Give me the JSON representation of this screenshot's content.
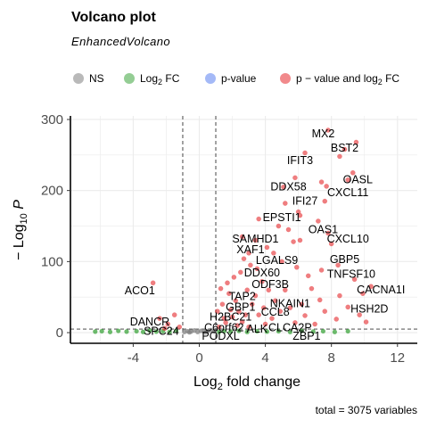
{
  "chart_data": {
    "type": "scatter",
    "title": "Volcano plot",
    "subtitle": "EnhancedVolcano",
    "xlabel": "fold change",
    "xlabel_prefix": "Log",
    "xlabel_sub": "2",
    "ylabel": "P",
    "ylabel_prefix": "− Log",
    "ylabel_sub": "10",
    "caption": "total = 3075 variables",
    "xlim": [
      -7.8,
      13.2
    ],
    "ylim": [
      -15,
      305
    ],
    "x_ticks": [
      -4,
      0,
      4,
      8,
      12
    ],
    "x_tick_labels": [
      "-4",
      "0",
      "4",
      "8",
      "12"
    ],
    "y_ticks": [
      0,
      100,
      200,
      300
    ],
    "y_tick_labels": [
      "0",
      "100",
      "200",
      "300"
    ],
    "grid": true,
    "fc_cutoff": 1,
    "p_cutoff_log10": 5,
    "legend_position": "top",
    "legend": [
      {
        "key": "ns",
        "label": "NS",
        "color": "#808080"
      },
      {
        "key": "fc",
        "label_prefix": "Log",
        "label_sub": "2",
        "label_suffix": " FC",
        "color": "#3ca43c"
      },
      {
        "key": "p",
        "label": "p-value",
        "color": "#5a7ff0"
      },
      {
        "key": "both",
        "label_prefix": "p − value and log",
        "label_sub": "2",
        "label_suffix": " FC",
        "color": "#e5282b"
      }
    ],
    "highlight_points": [
      {
        "x": 7.8,
        "y": 285
      },
      {
        "x": 9.5,
        "y": 268
      },
      {
        "x": 8.8,
        "y": 258
      },
      {
        "x": 6.4,
        "y": 253
      },
      {
        "x": 8.5,
        "y": 248
      },
      {
        "x": 9.3,
        "y": 225
      },
      {
        "x": 9.0,
        "y": 215
      },
      {
        "x": 5.8,
        "y": 218
      },
      {
        "x": 7.4,
        "y": 212
      },
      {
        "x": 7.7,
        "y": 206
      },
      {
        "x": 5.1,
        "y": 205
      },
      {
        "x": 7.6,
        "y": 185
      },
      {
        "x": 5.2,
        "y": 182
      },
      {
        "x": 6.0,
        "y": 170
      },
      {
        "x": 3.6,
        "y": 160
      },
      {
        "x": 6.1,
        "y": 165
      },
      {
        "x": 7.2,
        "y": 157
      },
      {
        "x": 4.8,
        "y": 150
      },
      {
        "x": 5.4,
        "y": 145
      },
      {
        "x": 7.8,
        "y": 140
      },
      {
        "x": 2.6,
        "y": 135
      },
      {
        "x": 3.4,
        "y": 130
      },
      {
        "x": 5.7,
        "y": 128
      },
      {
        "x": 6.1,
        "y": 130
      },
      {
        "x": 8.0,
        "y": 125
      },
      {
        "x": 4.1,
        "y": 120
      },
      {
        "x": 4.5,
        "y": 112
      },
      {
        "x": 3.0,
        "y": 112
      },
      {
        "x": 2.7,
        "y": 104
      },
      {
        "x": 5.0,
        "y": 100
      },
      {
        "x": 8.4,
        "y": 95
      },
      {
        "x": 7.4,
        "y": 88
      },
      {
        "x": 3.5,
        "y": 90
      },
      {
        "x": 9.4,
        "y": 75
      },
      {
        "x": 10.4,
        "y": 65
      },
      {
        "x": 9.9,
        "y": 55
      },
      {
        "x": 8.5,
        "y": 52
      },
      {
        "x": 7.3,
        "y": 46
      },
      {
        "x": 6.2,
        "y": 40
      },
      {
        "x": 5.5,
        "y": 35
      },
      {
        "x": 9.0,
        "y": 36
      },
      {
        "x": 7.6,
        "y": 30
      },
      {
        "x": 6.4,
        "y": 24
      },
      {
        "x": 8.3,
        "y": 19
      },
      {
        "x": 9.7,
        "y": 25
      },
      {
        "x": 5.8,
        "y": 14
      },
      {
        "x": 7.0,
        "y": 12
      },
      {
        "x": 10.1,
        "y": 15
      },
      {
        "x": 4.9,
        "y": 30
      },
      {
        "x": 4.2,
        "y": 60
      },
      {
        "x": 4.6,
        "y": 45
      },
      {
        "x": 3.8,
        "y": 72
      },
      {
        "x": -2.8,
        "y": 70
      },
      {
        "x": -1.5,
        "y": 25
      },
      {
        "x": -2.4,
        "y": 20
      },
      {
        "x": -1.9,
        "y": 12
      },
      {
        "x": -1.2,
        "y": 8
      },
      {
        "x": -2.1,
        "y": 6
      },
      {
        "x": 1.2,
        "y": 8
      },
      {
        "x": 1.6,
        "y": 14
      },
      {
        "x": 2.0,
        "y": 22
      },
      {
        "x": 2.4,
        "y": 30
      },
      {
        "x": 1.4,
        "y": 40
      },
      {
        "x": 1.8,
        "y": 55
      },
      {
        "x": 2.2,
        "y": 45
      },
      {
        "x": 2.9,
        "y": 60
      },
      {
        "x": 3.2,
        "y": 40
      },
      {
        "x": 3.6,
        "y": 25
      },
      {
        "x": 2.6,
        "y": 15
      },
      {
        "x": 3.0,
        "y": 8
      },
      {
        "x": 4.0,
        "y": 12
      },
      {
        "x": 4.4,
        "y": 20
      },
      {
        "x": 1.3,
        "y": 62
      },
      {
        "x": 1.7,
        "y": 70
      },
      {
        "x": 2.1,
        "y": 78
      },
      {
        "x": 2.5,
        "y": 85
      },
      {
        "x": 3.1,
        "y": 95
      },
      {
        "x": 1.9,
        "y": 32
      },
      {
        "x": 1.5,
        "y": 20
      },
      {
        "x": 2.3,
        "y": 10
      },
      {
        "x": 3.4,
        "y": 52
      },
      {
        "x": 3.9,
        "y": 35
      },
      {
        "x": 2.8,
        "y": 25
      },
      {
        "x": 1.1,
        "y": 30
      },
      {
        "x": 5.2,
        "y": 60
      },
      {
        "x": 6.8,
        "y": 62
      },
      {
        "x": 6.6,
        "y": 80
      },
      {
        "x": 5.9,
        "y": 92
      }
    ],
    "fc_points": [
      {
        "x": -6.3,
        "y": 1.5
      },
      {
        "x": -5.9,
        "y": 2
      },
      {
        "x": -5.4,
        "y": 1
      },
      {
        "x": -4.9,
        "y": 2.5
      },
      {
        "x": -4.4,
        "y": 1.5
      },
      {
        "x": -3.8,
        "y": 2
      },
      {
        "x": -3.4,
        "y": 1
      },
      {
        "x": -3.0,
        "y": 3
      },
      {
        "x": -2.6,
        "y": 1.5
      },
      {
        "x": -2.2,
        "y": 2
      },
      {
        "x": -1.8,
        "y": 1
      },
      {
        "x": -1.4,
        "y": 2.5
      },
      {
        "x": 1.2,
        "y": 1
      },
      {
        "x": 1.5,
        "y": 2
      },
      {
        "x": 1.9,
        "y": 1.5
      },
      {
        "x": 2.4,
        "y": 2.5
      },
      {
        "x": 2.9,
        "y": 1
      },
      {
        "x": 3.5,
        "y": 2
      },
      {
        "x": 4.1,
        "y": 1.5
      },
      {
        "x": 4.8,
        "y": 2
      },
      {
        "x": 5.5,
        "y": 1
      },
      {
        "x": 6.2,
        "y": 2.5
      },
      {
        "x": 6.9,
        "y": 1.5
      },
      {
        "x": 7.5,
        "y": 2
      },
      {
        "x": 8.2,
        "y": 1
      },
      {
        "x": 9.0,
        "y": 2
      }
    ],
    "ns_points": [
      {
        "x": -0.9,
        "y": 1
      },
      {
        "x": -0.7,
        "y": 2
      },
      {
        "x": -0.5,
        "y": 1.5
      },
      {
        "x": -0.3,
        "y": 3
      },
      {
        "x": -0.1,
        "y": 1
      },
      {
        "x": 0.1,
        "y": 2.5
      },
      {
        "x": 0.3,
        "y": 1
      },
      {
        "x": 0.5,
        "y": 2
      },
      {
        "x": 0.7,
        "y": 3.5
      },
      {
        "x": 0.9,
        "y": 1.5
      },
      {
        "x": -0.6,
        "y": 0.5
      },
      {
        "x": 0.4,
        "y": 0.5
      }
    ],
    "gene_labels": [
      {
        "name": "MX2",
        "x": 7.5,
        "y": 275
      },
      {
        "name": "BST2",
        "x": 8.8,
        "y": 255
      },
      {
        "name": "IFIT3",
        "x": 6.1,
        "y": 237
      },
      {
        "name": "OASL",
        "x": 9.6,
        "y": 210
      },
      {
        "name": "DDX58",
        "x": 5.4,
        "y": 200
      },
      {
        "name": "CXCL11",
        "x": 9.0,
        "y": 192
      },
      {
        "name": "IFI27",
        "x": 6.4,
        "y": 180
      },
      {
        "name": "EPSTI1",
        "x": 5.0,
        "y": 157
      },
      {
        "name": "OAS1",
        "x": 7.5,
        "y": 140
      },
      {
        "name": "CXCL10",
        "x": 9.0,
        "y": 127
      },
      {
        "name": "SAMHD1",
        "x": 3.4,
        "y": 127
      },
      {
        "name": "XAF1",
        "x": 3.1,
        "y": 112
      },
      {
        "name": "LGALS9",
        "x": 4.7,
        "y": 97
      },
      {
        "name": "GBP5",
        "x": 8.8,
        "y": 98
      },
      {
        "name": "DDX60",
        "x": 3.8,
        "y": 79
      },
      {
        "name": "TNFSF10",
        "x": 9.2,
        "y": 77
      },
      {
        "name": "ODF3B",
        "x": 4.3,
        "y": 63
      },
      {
        "name": "CACNA1I",
        "x": 11.0,
        "y": 55
      },
      {
        "name": "ACO1",
        "x": -3.6,
        "y": 54
      },
      {
        "name": "TAP2",
        "x": 2.6,
        "y": 46
      },
      {
        "name": "NKAIN1",
        "x": 5.5,
        "y": 36
      },
      {
        "name": "GBP1",
        "x": 2.5,
        "y": 31
      },
      {
        "name": "HSH2D",
        "x": 10.3,
        "y": 28
      },
      {
        "name": "CCL8",
        "x": 4.6,
        "y": 24
      },
      {
        "name": "H2BC21",
        "x": 1.9,
        "y": 17
      },
      {
        "name": "DANCR",
        "x": -3.0,
        "y": 10
      },
      {
        "name": "C6orf62",
        "x": 1.5,
        "y": 2
      },
      {
        "name": "ALK",
        "x": 3.5,
        "y": 0
      },
      {
        "name": "CLCA2P",
        "x": 5.5,
        "y": 2
      },
      {
        "name": "SPC24",
        "x": -2.3,
        "y": -3
      },
      {
        "name": "PODXL",
        "x": 1.3,
        "y": -10
      },
      {
        "name": "ZBP1",
        "x": 6.5,
        "y": -10
      }
    ]
  }
}
